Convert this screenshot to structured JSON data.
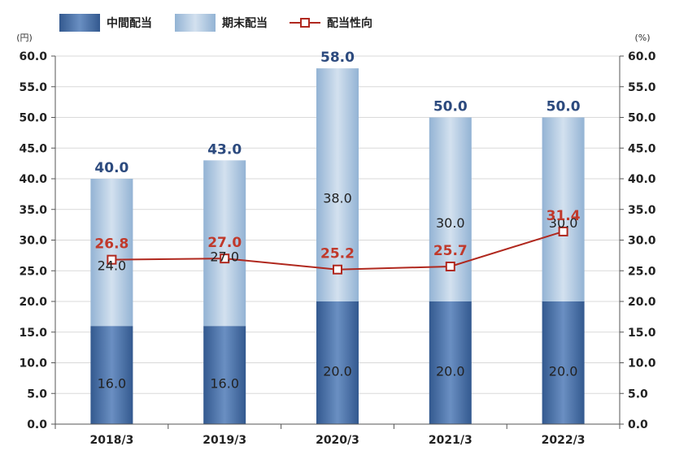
{
  "chart_data": {
    "type": "bar",
    "categories": [
      "2018/3",
      "2019/3",
      "2020/3",
      "2021/3",
      "2022/3"
    ],
    "series": [
      {
        "name": "中間配当",
        "type": "bar",
        "stack": "dividend",
        "color": "#3d67a3",
        "values": [
          16.0,
          16.0,
          20.0,
          20.0,
          20.0
        ]
      },
      {
        "name": "期末配当",
        "type": "bar",
        "stack": "dividend",
        "color": "#a9c4df",
        "values": [
          24.0,
          27.0,
          38.0,
          30.0,
          30.0
        ]
      },
      {
        "name": "配当性向",
        "type": "line",
        "axis": "right",
        "color": "#b0281e",
        "values": [
          26.8,
          27.0,
          25.2,
          25.7,
          31.4
        ]
      }
    ],
    "totals": [
      40.0,
      43.0,
      58.0,
      50.0,
      50.0
    ],
    "yleft": {
      "unit": "(円)",
      "ylim": [
        0,
        60
      ],
      "step": 5
    },
    "yright": {
      "unit": "(%)",
      "ylim": [
        0,
        60
      ],
      "step": 5
    },
    "grid": true,
    "legend": "top-left",
    "colors": {
      "total_label": "#2c4a7e",
      "line_label": "#c0392b",
      "inner_label": "#222222"
    }
  }
}
